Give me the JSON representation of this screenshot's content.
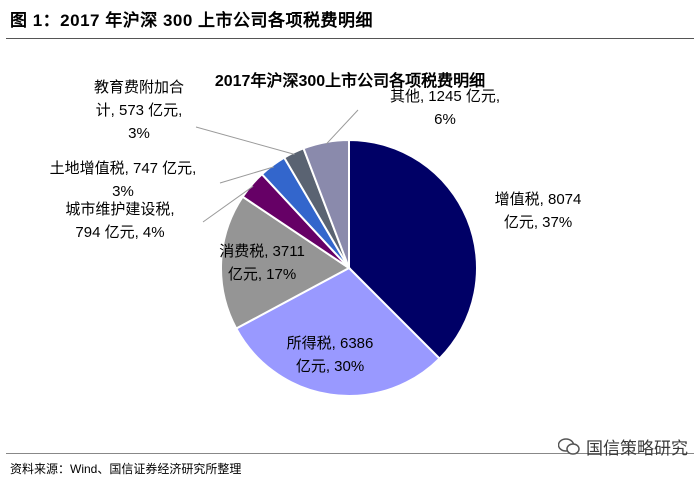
{
  "figure": {
    "title": "图 1：2017 年沪深 300 上市公司各项税费明细",
    "source": "资料来源：Wind、国信证券经济研究所整理",
    "watermark": "国信策略研究"
  },
  "chart_data": {
    "type": "pie",
    "title": "2017年沪深300上市公司各项税费明细",
    "unit": "亿元",
    "slices": [
      {
        "name": "增值税",
        "value": 8074,
        "percent": 37,
        "color": "#000066",
        "label_lines": [
          "增值税, 8074",
          "亿元, 37%"
        ]
      },
      {
        "name": "所得税",
        "value": 6386,
        "percent": 30,
        "color": "#9999ff",
        "label_lines": [
          "所得税, 6386",
          "亿元, 30%"
        ]
      },
      {
        "name": "消费税",
        "value": 3711,
        "percent": 17,
        "color": "#959595",
        "label_lines": [
          "消费税, 3711",
          "亿元,  17%"
        ]
      },
      {
        "name": "城市维护建设税",
        "value": 794,
        "percent": 4,
        "color": "#660066",
        "label_lines": [
          "城市维护建设税,",
          "794 亿元, 4%"
        ]
      },
      {
        "name": "土地增值税",
        "value": 747,
        "percent": 3,
        "color": "#3366cc",
        "label_lines": [
          "土地增值税, 747 亿元,",
          "3%"
        ]
      },
      {
        "name": "教育费附加合计",
        "value": 573,
        "percent": 3,
        "color": "#5a6372",
        "label_lines": [
          "教育费附加合",
          "计, 573 亿元,",
          "3%"
        ]
      },
      {
        "name": "其他",
        "value": 1245,
        "percent": 6,
        "color": "#8a8aac",
        "label_lines": [
          "其他, 1245 亿元,",
          "6%"
        ]
      }
    ]
  }
}
